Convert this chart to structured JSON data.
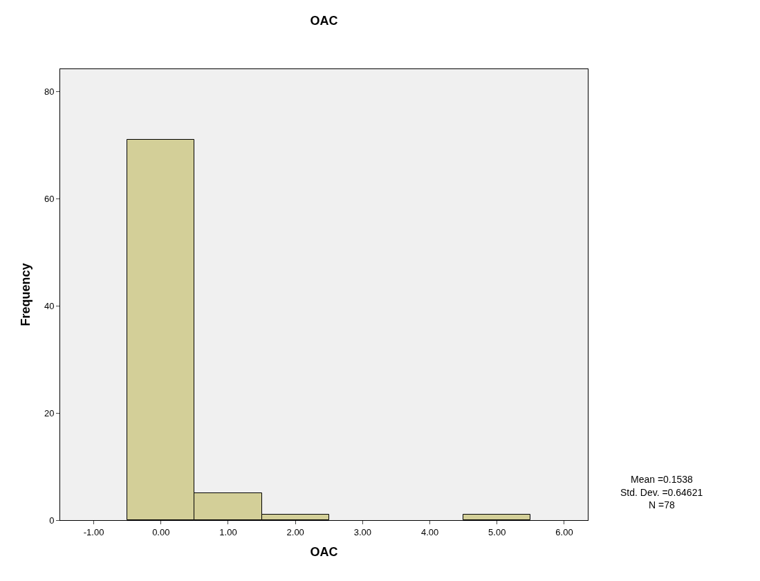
{
  "chart_data": {
    "type": "histogram",
    "title": "OAC",
    "xlabel": "OAC",
    "ylabel": "Frequency",
    "bins": [
      -0.5,
      0.5,
      1.5,
      2.5,
      3.5,
      4.5,
      5.5
    ],
    "values": [
      71,
      5,
      1,
      0,
      0,
      1
    ],
    "color": "#d3cf98",
    "xlim": [
      -1.5,
      6.35
    ],
    "xticks": [
      {
        "value": -1,
        "label": "-1.00"
      },
      {
        "value": 0,
        "label": "0.00"
      },
      {
        "value": 1,
        "label": "1.00"
      },
      {
        "value": 2,
        "label": "2.00"
      },
      {
        "value": 3,
        "label": "3.00"
      },
      {
        "value": 4,
        "label": "4.00"
      },
      {
        "value": 5,
        "label": "5.00"
      },
      {
        "value": 6,
        "label": "6.00"
      }
    ],
    "ylim": [
      0,
      84.2
    ],
    "yticks": [
      0,
      20,
      40,
      60,
      80
    ],
    "legend": false,
    "annotations": [
      "Mean =0.1538",
      "Std. Dev. =0.64621",
      "N =78"
    ]
  }
}
